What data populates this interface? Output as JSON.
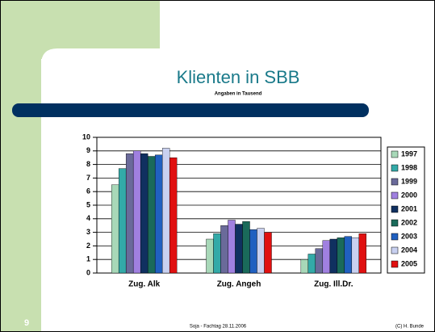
{
  "chart_data": {
    "type": "bar",
    "title": "Klienten in SBB",
    "subtitle": "Angaben in Tausend",
    "categories": [
      "Zug. Alk",
      "Zug. Angeh",
      "Zug. Ill.Dr."
    ],
    "series": [
      {
        "name": "1997",
        "color": "#a8d8b8",
        "values": [
          6.5,
          2.5,
          1.0
        ]
      },
      {
        "name": "1998",
        "color": "#33aaa8",
        "values": [
          7.7,
          2.9,
          1.4
        ]
      },
      {
        "name": "1999",
        "color": "#6a6a9a",
        "values": [
          8.8,
          3.5,
          1.8
        ]
      },
      {
        "name": "2000",
        "color": "#a080e0",
        "values": [
          9.0,
          3.9,
          2.4
        ]
      },
      {
        "name": "2001",
        "color": "#103060",
        "values": [
          8.8,
          3.6,
          2.5
        ]
      },
      {
        "name": "2002",
        "color": "#1a6a5a",
        "values": [
          8.6,
          3.8,
          2.6
        ]
      },
      {
        "name": "2003",
        "color": "#2060c0",
        "values": [
          8.7,
          3.2,
          2.7
        ]
      },
      {
        "name": "2004",
        "color": "#c8d0f0",
        "values": [
          9.2,
          3.3,
          2.6
        ]
      },
      {
        "name": "2005",
        "color": "#e01010",
        "values": [
          8.5,
          3.0,
          2.9
        ]
      }
    ],
    "ylim": [
      0,
      10
    ],
    "yticks": [
      0,
      1,
      2,
      3,
      4,
      5,
      6,
      7,
      8,
      9,
      10
    ],
    "grid": true,
    "legend": "right"
  },
  "slide": {
    "number": "9",
    "footer": "Soja - Fachtag 28.11.2006",
    "copyright": "(C) H. Bunde"
  }
}
